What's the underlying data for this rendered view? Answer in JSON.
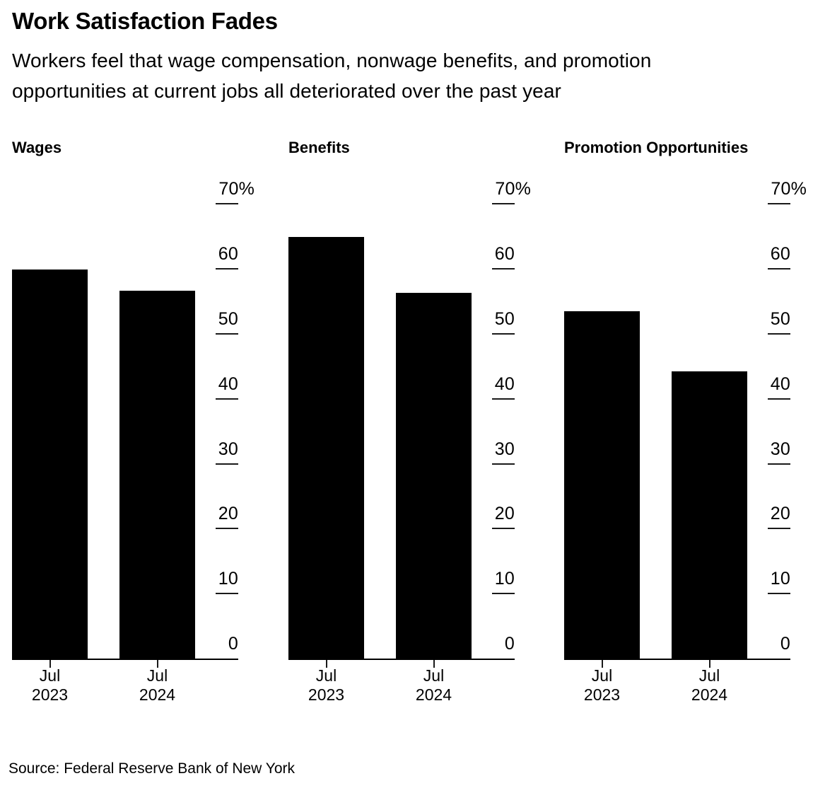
{
  "header": {
    "title": "Work Satisfaction Fades",
    "subtitle": "Workers feel that wage compensation, nonwage benefits, and promotion opportunities at current jobs all deteriorated over the past year",
    "subtitle_lines": [
      "Workers feel that wage compensation, nonwage benefits, and promotion",
      "opportunities at current jobs all deteriorated over the past year"
    ]
  },
  "footer": {
    "source": "Source: Federal Reserve Bank of New York"
  },
  "colors": {
    "background": "#ffffff",
    "text": "#000000",
    "bar": "#000000",
    "axis": "#000000"
  },
  "chart_data": [
    {
      "type": "bar",
      "title": "Wages",
      "categories": [
        "Jul 2023",
        "Jul 2024"
      ],
      "values": [
        59.9,
        56.7
      ],
      "unit": "%",
      "ylim": [
        0,
        70
      ],
      "yticks": [
        0,
        10,
        20,
        30,
        40,
        50,
        60,
        70
      ],
      "ytick_labels": [
        "0",
        "10",
        "20",
        "30",
        "40",
        "50",
        "60",
        "70%"
      ],
      "xlabel": "",
      "ylabel": "",
      "grid": false,
      "tick_label_position": "right",
      "bar_color": "#000000"
    },
    {
      "type": "bar",
      "title": "Benefits",
      "categories": [
        "Jul 2023",
        "Jul 2024"
      ],
      "values": [
        64.9,
        56.3
      ],
      "unit": "%",
      "ylim": [
        0,
        70
      ],
      "yticks": [
        0,
        10,
        20,
        30,
        40,
        50,
        60,
        70
      ],
      "ytick_labels": [
        "0",
        "10",
        "20",
        "30",
        "40",
        "50",
        "60",
        "70%"
      ],
      "xlabel": "",
      "ylabel": "",
      "grid": false,
      "tick_label_position": "right",
      "bar_color": "#000000"
    },
    {
      "type": "bar",
      "title": "Promotion Opportunities",
      "categories": [
        "Jul 2023",
        "Jul 2024"
      ],
      "values": [
        53.5,
        44.2
      ],
      "unit": "%",
      "ylim": [
        0,
        70
      ],
      "yticks": [
        0,
        10,
        20,
        30,
        40,
        50,
        60,
        70
      ],
      "ytick_labels": [
        "0",
        "10",
        "20",
        "30",
        "40",
        "50",
        "60",
        "70%"
      ],
      "xlabel": "",
      "ylabel": "",
      "grid": false,
      "tick_label_position": "right",
      "bar_color": "#000000"
    }
  ]
}
